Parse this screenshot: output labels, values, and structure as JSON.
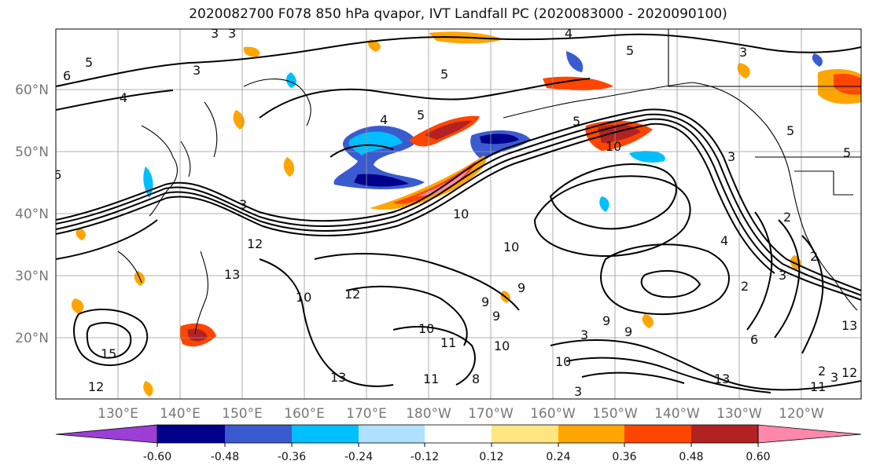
{
  "title": "2020082700 F078 850 hPa qvapor, IVT Landfall PC (2020083000 - 2020090100)",
  "lon_labels": [
    "130°E",
    "140°E",
    "150°E",
    "160°E",
    "170°E",
    "180°W",
    "170°W",
    "160°W",
    "150°W",
    "140°W",
    "130°W",
    "120°W"
  ],
  "lat_labels": [
    "60°N",
    "50°N",
    "40°N",
    "30°N",
    "20°N"
  ],
  "colorbar": {
    "colors": [
      "#9b3fd6",
      "#00008b",
      "#3a5bd0",
      "#00bfff",
      "#b0e2ff",
      "#ffffff",
      "#ffe680",
      "#ffa500",
      "#ff4500",
      "#b22222",
      "#ff88aa"
    ],
    "tick_labels": [
      "-0.60",
      "-0.48",
      "-0.36",
      "-0.24",
      "-0.12",
      "0.12",
      "0.24",
      "0.36",
      "0.48",
      "0.60"
    ]
  },
  "contour_labels": [
    "3",
    "3",
    "5",
    "4",
    "5",
    "3",
    "6",
    "4",
    "3",
    "5",
    "5",
    "4",
    "5",
    "5",
    "10",
    "3",
    "2",
    "2",
    "4",
    "5",
    "6",
    "12",
    "3",
    "10",
    "10",
    "10",
    "9",
    "9",
    "12",
    "13",
    "3",
    "2",
    "6",
    "9",
    "13",
    "9",
    "10",
    "10",
    "11",
    "11",
    "3",
    "10",
    "3",
    "9",
    "3",
    "2",
    "11",
    "8",
    "13",
    "12",
    "15",
    "13",
    "12"
  ]
}
